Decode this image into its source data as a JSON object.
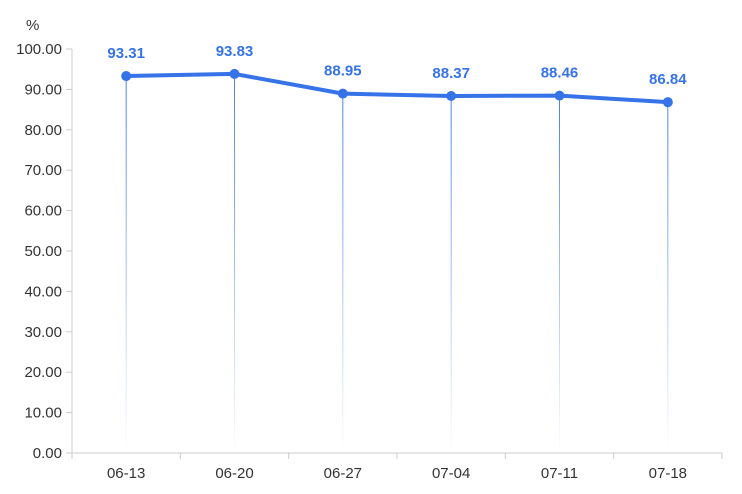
{
  "chart_data": {
    "type": "line",
    "title": "",
    "xlabel": "",
    "ylabel": "%",
    "categories": [
      "06-13",
      "06-20",
      "06-27",
      "07-04",
      "07-11",
      "07-18"
    ],
    "series": [
      {
        "values": [
          93.31,
          93.83,
          88.95,
          88.37,
          88.46,
          86.84
        ]
      }
    ],
    "data_labels": [
      "93.31",
      "93.83",
      "88.95",
      "88.37",
      "88.46",
      "86.84"
    ],
    "ylim": [
      0,
      100
    ],
    "yticks": [
      "0.00",
      "10.00",
      "20.00",
      "30.00",
      "40.00",
      "50.00",
      "60.00",
      "70.00",
      "80.00",
      "90.00",
      "100.00"
    ],
    "grid": false,
    "drop_lines": true,
    "colors": {
      "line": "#3673e8",
      "label": "#3673e8",
      "axis": "#cccccc",
      "text": "#333333"
    }
  }
}
